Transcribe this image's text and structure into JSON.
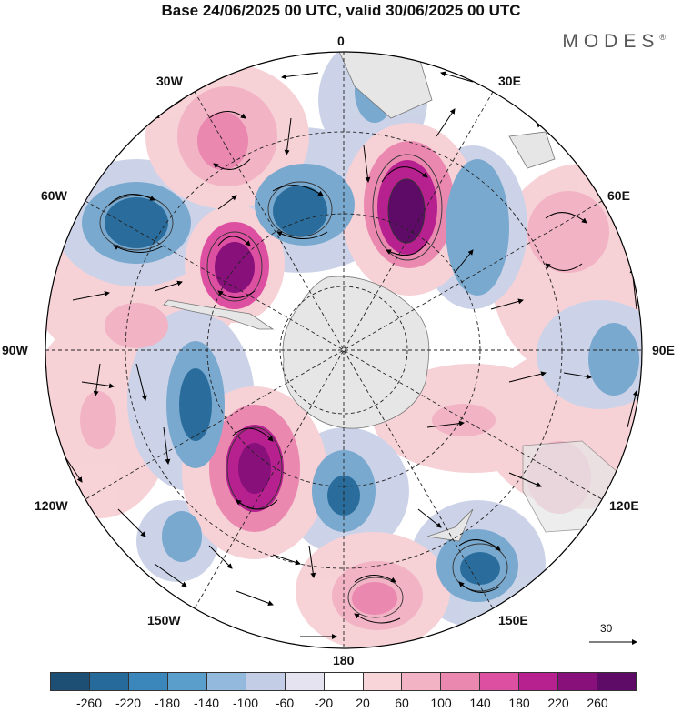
{
  "title": "Base 24/06/2025 00 UTC, valid 30/06/2025 00 UTC",
  "brand": "MODES",
  "brand_mark": "®",
  "map": {
    "projection": "south polar stereographic",
    "longitude_labels": {
      "top": "0",
      "upper_left": "30W",
      "upper_right": "30E",
      "left_upper": "60W",
      "right_upper": "60E",
      "left": "90W",
      "right": "90E",
      "left_lower": "120W",
      "right_lower": "120E",
      "lower_left": "150W",
      "lower_right": "150E",
      "bottom": "180"
    },
    "reference_vector_label": "30",
    "colors": {
      "negative_strong": "#2a6d9c",
      "negative_mid": "#79a9cf",
      "negative_weak": "#c7cfe6",
      "positive_weak": "#f6cdd2",
      "positive_mid": "#e98ab3",
      "positive_strong": "#a01e8c",
      "land": "#e6e6e6"
    }
  },
  "colorbar": {
    "tick_labels": [
      "-260",
      "-220",
      "-180",
      "-140",
      "-100",
      "-60",
      "-20",
      "20",
      "60",
      "100",
      "140",
      "180",
      "220",
      "260"
    ],
    "colors": [
      "#1d4e73",
      "#256a9b",
      "#3b87bc",
      "#5a9ecb",
      "#93b9dc",
      "#c4cde6",
      "#e6e3f1",
      "#ffffff",
      "#f8d5d8",
      "#f2b3c5",
      "#ea88b0",
      "#dd4fa0",
      "#b7208f",
      "#87107b",
      "#5e0b68"
    ]
  }
}
